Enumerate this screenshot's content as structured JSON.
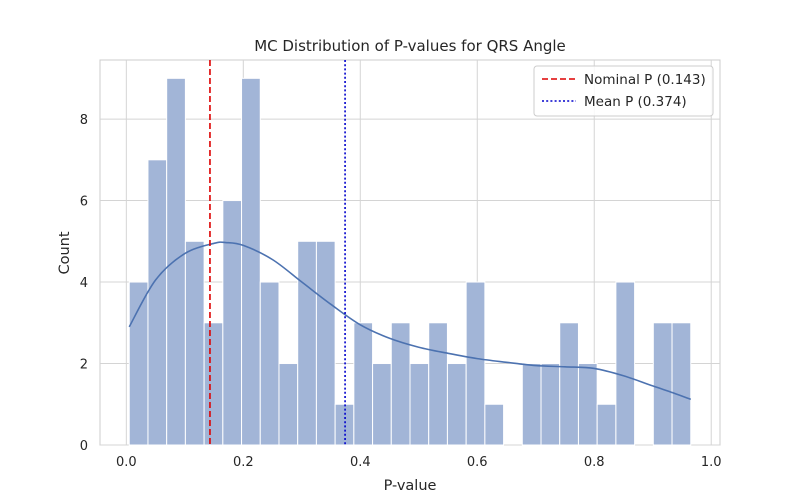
{
  "chart_data": {
    "type": "bar",
    "title": "MC Distribution of P-values for QRS Angle",
    "xlabel": "P-value",
    "ylabel": "Count",
    "xlim": [
      -0.045,
      1.015
    ],
    "ylim": [
      0,
      9.45
    ],
    "xticks": [
      0.0,
      0.2,
      0.4,
      0.6,
      0.8,
      1.0
    ],
    "xtick_labels": [
      "0.0",
      "0.2",
      "0.4",
      "0.6",
      "0.8",
      "1.0"
    ],
    "yticks": [
      0,
      2,
      4,
      6,
      8
    ],
    "ytick_labels": [
      "0",
      "2",
      "4",
      "6",
      "8"
    ],
    "grid": true,
    "bar_color": "#a2b5d7",
    "bin_edges": [
      0.005,
      0.037,
      0.069,
      0.101,
      0.133,
      0.165,
      0.197,
      0.229,
      0.261,
      0.293,
      0.325,
      0.357,
      0.389,
      0.421,
      0.453,
      0.485,
      0.517,
      0.549,
      0.581,
      0.613,
      0.645,
      0.677,
      0.709,
      0.741,
      0.773,
      0.805,
      0.837,
      0.869,
      0.901,
      0.933,
      0.965
    ],
    "counts": [
      4,
      7,
      9,
      5,
      3,
      6,
      9,
      4,
      2,
      5,
      5,
      1,
      3,
      2,
      3,
      2,
      3,
      2,
      4,
      1,
      0,
      2,
      2,
      3,
      2,
      1,
      4,
      0,
      3,
      3
    ],
    "kde": {
      "color": "#4c72b0",
      "x": [
        0.005,
        0.05,
        0.1,
        0.15,
        0.17,
        0.2,
        0.25,
        0.3,
        0.35,
        0.4,
        0.45,
        0.5,
        0.55,
        0.6,
        0.65,
        0.7,
        0.75,
        0.8,
        0.85,
        0.9,
        0.935,
        0.965
      ],
      "y": [
        2.9,
        4.05,
        4.7,
        4.95,
        4.97,
        4.9,
        4.55,
        4.0,
        3.45,
        2.95,
        2.62,
        2.4,
        2.25,
        2.12,
        2.03,
        1.95,
        1.92,
        1.88,
        1.7,
        1.45,
        1.28,
        1.12
      ]
    },
    "reference_lines": [
      {
        "name": "Nominal P (0.143)",
        "x": 0.143,
        "color": "#dd0000",
        "style": "dashed"
      },
      {
        "name": "Mean P (0.374)",
        "x": 0.374,
        "color": "#0000cc",
        "style": "dotted"
      }
    ],
    "legend_position": "top-right"
  }
}
